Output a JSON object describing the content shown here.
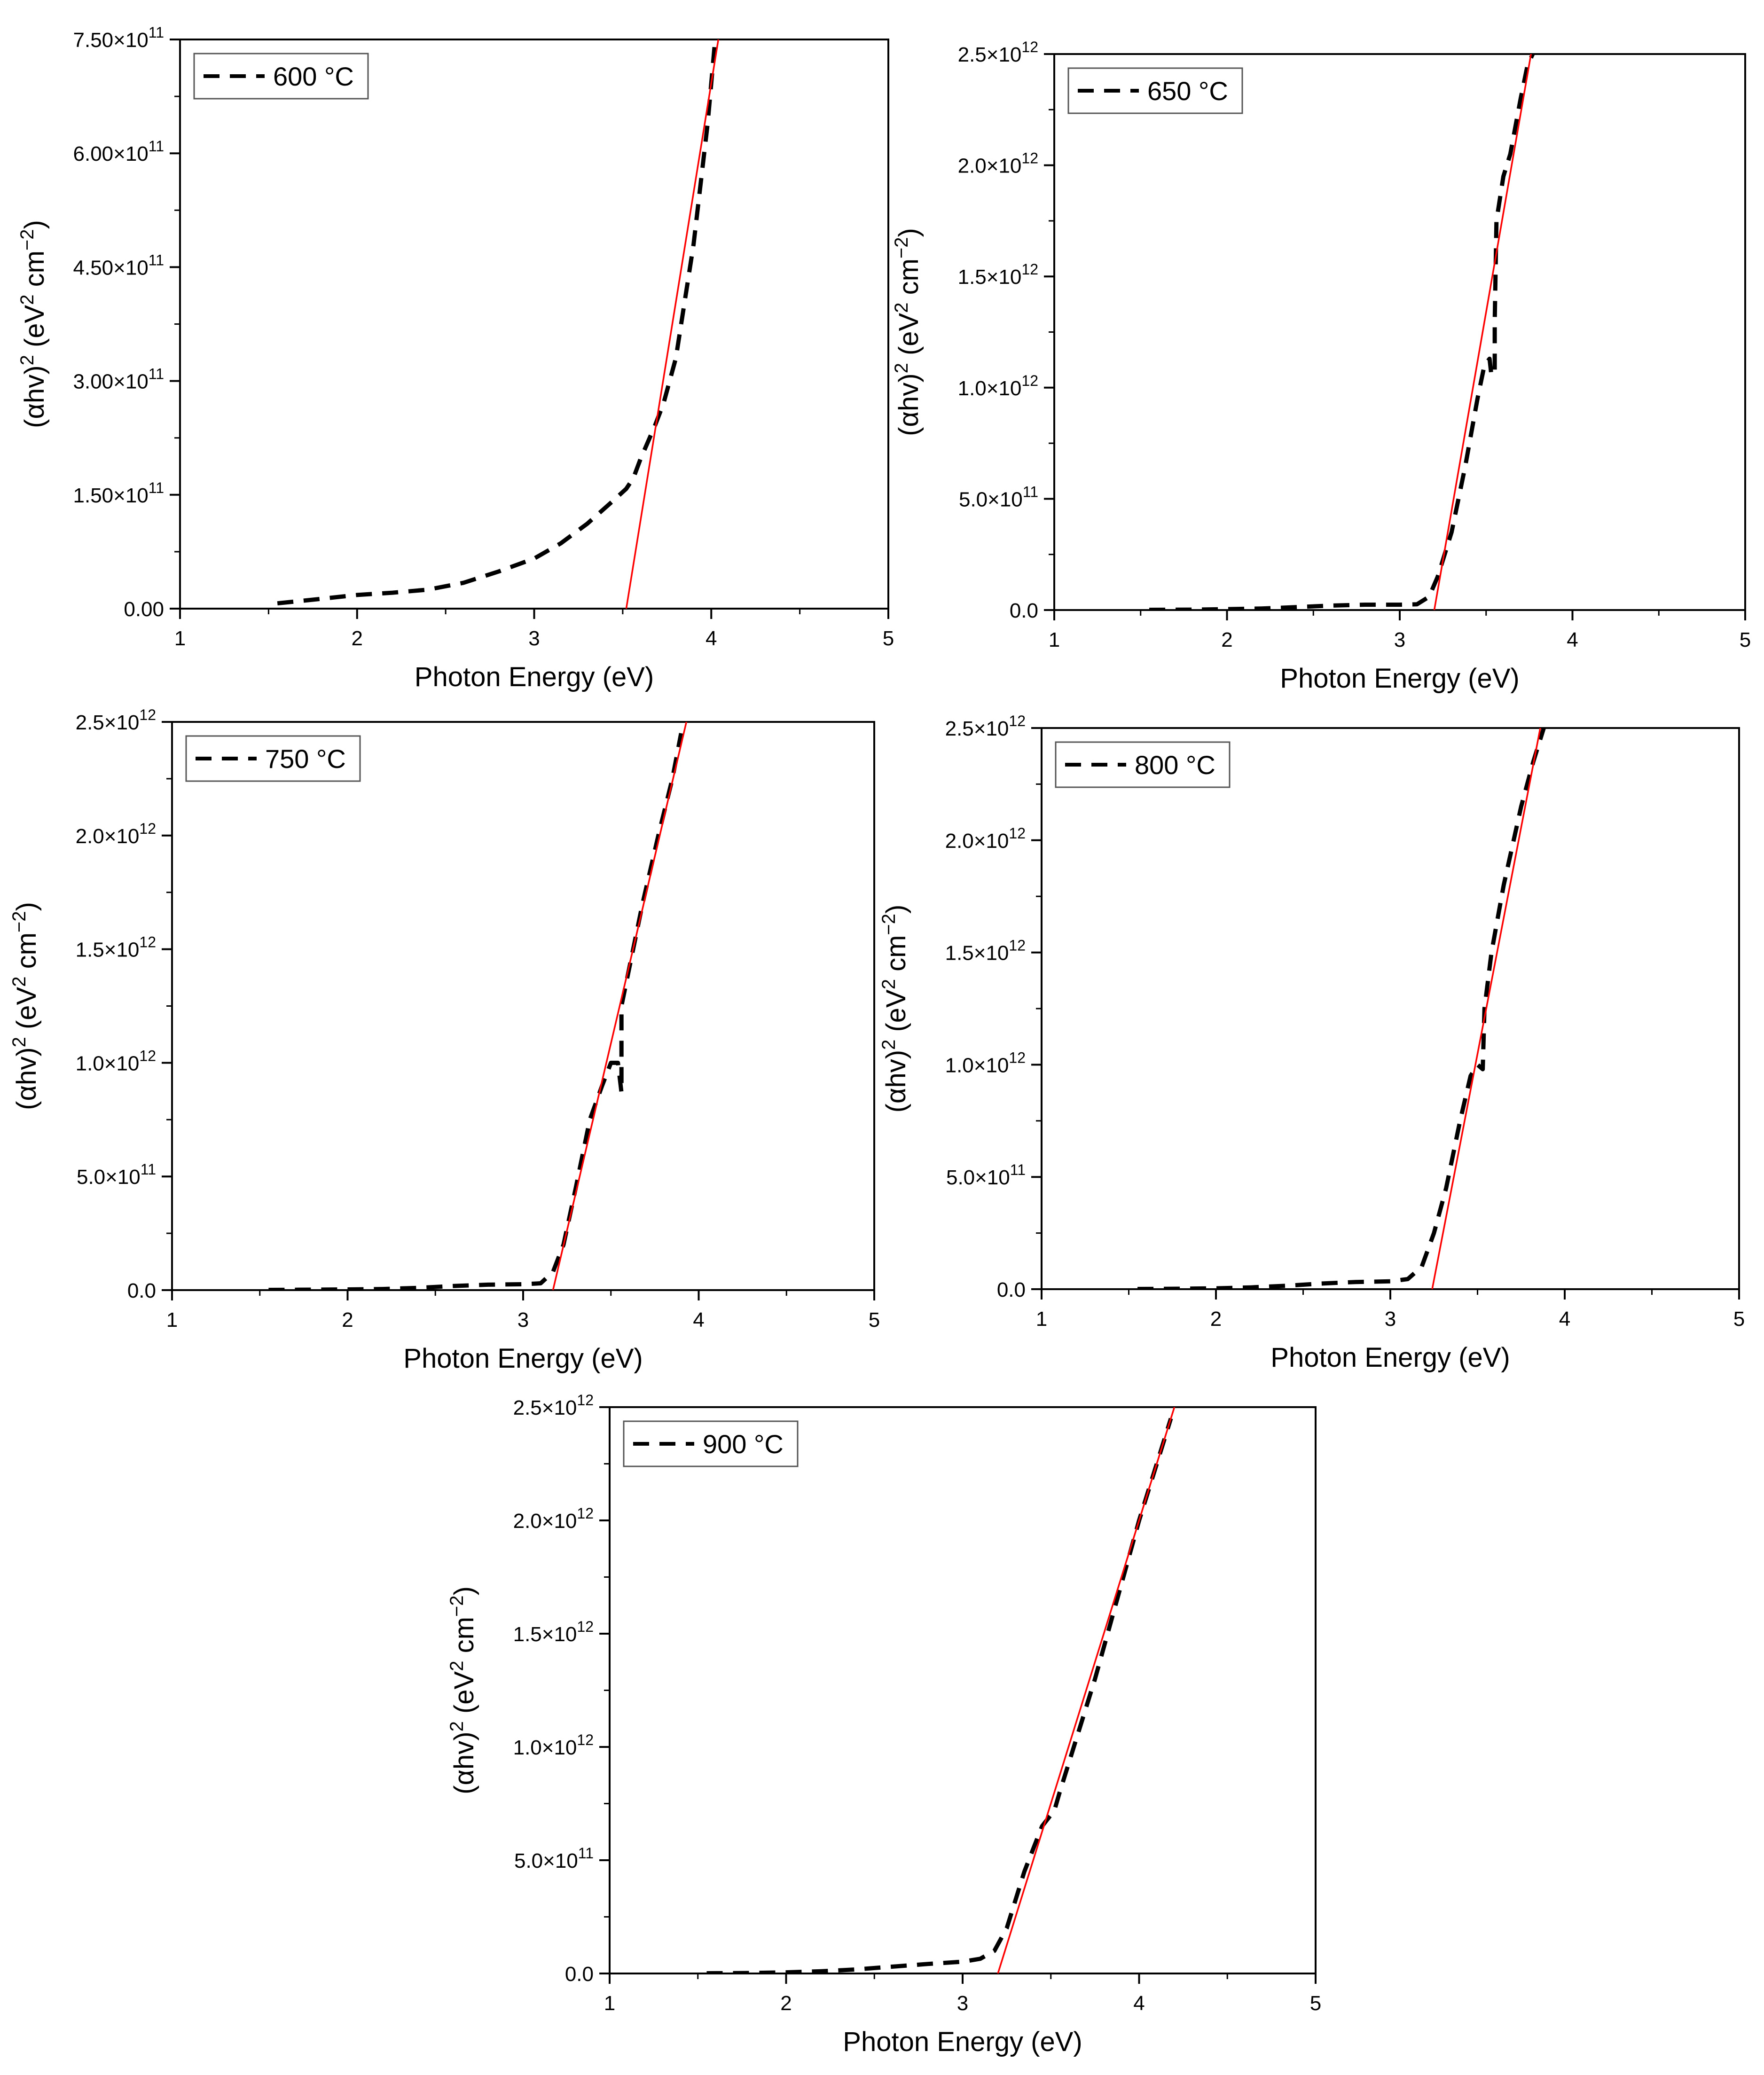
{
  "chart_data": [
    {
      "type": "line",
      "xlabel": "Photon Energy (eV)",
      "ylabel": "(αhv)² (eV² cm⁻²)",
      "xlim": [
        1,
        5
      ],
      "ylim": [
        0,
        750000000000
      ],
      "x_ticks": [
        "1",
        "2",
        "3",
        "4",
        "5"
      ],
      "y_ticks": [
        {
          "value": 0,
          "mantissa": "0.00",
          "exp": ""
        },
        {
          "value": 150000000000,
          "mantissa": "1.50×10",
          "exp": "11"
        },
        {
          "value": 300000000000,
          "mantissa": "3.00×10",
          "exp": "11"
        },
        {
          "value": 450000000000,
          "mantissa": "4.50×10",
          "exp": "11"
        },
        {
          "value": 600000000000,
          "mantissa": "6.00×10",
          "exp": "11"
        },
        {
          "value": 750000000000,
          "mantissa": "7.50×10",
          "exp": "11"
        }
      ],
      "legend": {
        "label": "600 °C",
        "position": "top-left"
      },
      "grid": false,
      "series": [
        {
          "name": "600 °C",
          "style": "dashed",
          "color": "#000000",
          "points": [
            [
              1.55,
              7000000000
            ],
            [
              1.8,
              13000000000
            ],
            [
              2.0,
              18000000000
            ],
            [
              2.2,
              21000000000
            ],
            [
              2.4,
              25000000000
            ],
            [
              2.6,
              34000000000
            ],
            [
              2.8,
              49000000000
            ],
            [
              3.0,
              66000000000
            ],
            [
              3.15,
              86000000000
            ],
            [
              3.3,
              112000000000
            ],
            [
              3.45,
              143000000000
            ],
            [
              3.52,
              158000000000
            ],
            [
              3.56,
              172000000000
            ],
            [
              3.6,
              197000000000
            ],
            [
              3.68,
              240000000000
            ],
            [
              3.73,
              270000000000
            ],
            [
              3.8,
              330000000000
            ],
            [
              3.9,
              480000000000
            ],
            [
              3.98,
              640000000000
            ],
            [
              4.02,
              745000000000
            ]
          ]
        }
      ],
      "fit_line": {
        "color": "#ff0000",
        "points": [
          [
            3.52,
            0
          ],
          [
            4.04,
            750000000000
          ]
        ]
      }
    },
    {
      "type": "line",
      "xlabel": "Photon Energy (eV)",
      "ylabel": "(αhv)² (eV² cm⁻²)",
      "xlim": [
        1,
        5
      ],
      "ylim": [
        0,
        2500000000000
      ],
      "x_ticks": [
        "1",
        "2",
        "3",
        "4",
        "5"
      ],
      "y_ticks": [
        {
          "value": 0,
          "mantissa": "0.0",
          "exp": ""
        },
        {
          "value": 500000000000,
          "mantissa": "5.0×10",
          "exp": "11"
        },
        {
          "value": 1000000000000,
          "mantissa": "1.0×10",
          "exp": "12"
        },
        {
          "value": 1500000000000,
          "mantissa": "1.5×10",
          "exp": "12"
        },
        {
          "value": 2000000000000,
          "mantissa": "2.0×10",
          "exp": "12"
        },
        {
          "value": 2500000000000,
          "mantissa": "2.5×10",
          "exp": "12"
        }
      ],
      "legend": {
        "label": "650 °C",
        "position": "top-left"
      },
      "grid": false,
      "series": [
        {
          "name": "650 °C",
          "style": "dashed",
          "color": "#000000",
          "points": [
            [
              1.55,
              1000000000
            ],
            [
              1.8,
              2000000000
            ],
            [
              2.0,
              4000000000
            ],
            [
              2.2,
              7000000000
            ],
            [
              2.4,
              13000000000
            ],
            [
              2.6,
              20000000000
            ],
            [
              2.8,
              24000000000
            ],
            [
              3.0,
              24000000000
            ],
            [
              3.1,
              26000000000
            ],
            [
              3.17,
              60000000000
            ],
            [
              3.22,
              150000000000
            ],
            [
              3.3,
              350000000000
            ],
            [
              3.38,
              650000000000
            ],
            [
              3.45,
              950000000000
            ],
            [
              3.49,
              1100000000000
            ],
            [
              3.52,
              1130000000000
            ],
            [
              3.53,
              1060000000000
            ],
            [
              3.55,
              1060000000000
            ],
            [
              3.55,
              1300000000000
            ],
            [
              3.56,
              1750000000000
            ],
            [
              3.6,
              1950000000000
            ],
            [
              3.64,
              2050000000000
            ],
            [
              3.7,
              2300000000000
            ],
            [
              3.74,
              2450000000000
            ],
            [
              3.77,
              2500000000000
            ]
          ]
        }
      ],
      "fit_line": {
        "color": "#ff0000",
        "points": [
          [
            3.2,
            0
          ],
          [
            3.76,
            2500000000000
          ]
        ]
      }
    },
    {
      "type": "line",
      "xlabel": "Photon Energy (eV)",
      "ylabel": "(αhv)² (eV² cm⁻²)",
      "xlim": [
        1,
        5
      ],
      "ylim": [
        0,
        2500000000000
      ],
      "x_ticks": [
        "1",
        "2",
        "3",
        "4",
        "5"
      ],
      "y_ticks": [
        {
          "value": 0,
          "mantissa": "0.0",
          "exp": ""
        },
        {
          "value": 500000000000,
          "mantissa": "5.0×10",
          "exp": "11"
        },
        {
          "value": 1000000000000,
          "mantissa": "1.0×10",
          "exp": "12"
        },
        {
          "value": 1500000000000,
          "mantissa": "1.5×10",
          "exp": "12"
        },
        {
          "value": 2000000000000,
          "mantissa": "2.0×10",
          "exp": "12"
        },
        {
          "value": 2500000000000,
          "mantissa": "2.5×10",
          "exp": "12"
        }
      ],
      "legend": {
        "label": "750 °C",
        "position": "top-left"
      },
      "grid": false,
      "series": [
        {
          "name": "750 °C",
          "style": "dashed",
          "color": "#000000",
          "points": [
            [
              1.55,
              1000000000
            ],
            [
              1.8,
              2000000000
            ],
            [
              2.0,
              3000000000
            ],
            [
              2.2,
              5000000000
            ],
            [
              2.4,
              10000000000
            ],
            [
              2.6,
              18000000000
            ],
            [
              2.8,
              24000000000
            ],
            [
              3.0,
              26000000000
            ],
            [
              3.1,
              30000000000
            ],
            [
              3.17,
              80000000000
            ],
            [
              3.23,
              200000000000
            ],
            [
              3.3,
              450000000000
            ],
            [
              3.38,
              750000000000
            ],
            [
              3.45,
              900000000000
            ],
            [
              3.5,
              1000000000000
            ],
            [
              3.54,
              1000000000000
            ],
            [
              3.56,
              870000000000
            ],
            [
              3.56,
              1250000000000
            ],
            [
              3.6,
              1400000000000
            ],
            [
              3.68,
              1700000000000
            ],
            [
              3.77,
              2000000000000
            ],
            [
              3.85,
              2250000000000
            ],
            [
              3.9,
              2450000000000
            ]
          ]
        }
      ],
      "fit_line": {
        "color": "#ff0000",
        "points": [
          [
            3.17,
            0
          ],
          [
            3.93,
            2500000000000
          ]
        ]
      }
    },
    {
      "type": "line",
      "xlabel": "Photon Energy (eV)",
      "ylabel": "(αhv)² (eV² cm⁻²)",
      "xlim": [
        1,
        5
      ],
      "ylim": [
        0,
        2500000000000
      ],
      "x_ticks": [
        "1",
        "2",
        "3",
        "4",
        "5"
      ],
      "y_ticks": [
        {
          "value": 0,
          "mantissa": "0.0",
          "exp": ""
        },
        {
          "value": 500000000000,
          "mantissa": "5.0×10",
          "exp": "11"
        },
        {
          "value": 1000000000000,
          "mantissa": "1.0×10",
          "exp": "12"
        },
        {
          "value": 1500000000000,
          "mantissa": "1.5×10",
          "exp": "12"
        },
        {
          "value": 2000000000000,
          "mantissa": "2.0×10",
          "exp": "12"
        },
        {
          "value": 2500000000000,
          "mantissa": "2.5×10",
          "exp": "12"
        }
      ],
      "legend": {
        "label": "800 °C",
        "position": "top-left"
      },
      "grid": false,
      "series": [
        {
          "name": "800 °C",
          "style": "dashed",
          "color": "#000000",
          "points": [
            [
              1.55,
              1000000000
            ],
            [
              1.8,
              2000000000
            ],
            [
              2.0,
              4000000000
            ],
            [
              2.2,
              8000000000
            ],
            [
              2.4,
              15000000000
            ],
            [
              2.6,
              25000000000
            ],
            [
              2.8,
              32000000000
            ],
            [
              3.0,
              35000000000
            ],
            [
              3.1,
              45000000000
            ],
            [
              3.18,
              100000000000
            ],
            [
              3.25,
              250000000000
            ],
            [
              3.32,
              450000000000
            ],
            [
              3.4,
              750000000000
            ],
            [
              3.46,
              950000000000
            ],
            [
              3.5,
              1000000000000
            ],
            [
              3.53,
              980000000000
            ],
            [
              3.54,
              1250000000000
            ],
            [
              3.58,
              1500000000000
            ],
            [
              3.65,
              1800000000000
            ],
            [
              3.75,
              2150000000000
            ],
            [
              3.82,
              2350000000000
            ],
            [
              3.88,
              2500000000000
            ]
          ]
        }
      ],
      "fit_line": {
        "color": "#ff0000",
        "points": [
          [
            3.24,
            0
          ],
          [
            3.86,
            2500000000000
          ]
        ]
      }
    },
    {
      "type": "line",
      "xlabel": "Photon Energy (eV)",
      "ylabel": "(αhv)² (eV² cm⁻²)",
      "xlim": [
        1,
        5
      ],
      "ylim": [
        0,
        2500000000000
      ],
      "x_ticks": [
        "1",
        "2",
        "3",
        "4",
        "5"
      ],
      "y_ticks": [
        {
          "value": 0,
          "mantissa": "0.0",
          "exp": ""
        },
        {
          "value": 500000000000,
          "mantissa": "5.0×10",
          "exp": "11"
        },
        {
          "value": 1000000000000,
          "mantissa": "1.0×10",
          "exp": "12"
        },
        {
          "value": 1500000000000,
          "mantissa": "1.5×10",
          "exp": "12"
        },
        {
          "value": 2000000000000,
          "mantissa": "2.0×10",
          "exp": "12"
        },
        {
          "value": 2500000000000,
          "mantissa": "2.5×10",
          "exp": "12"
        }
      ],
      "legend": {
        "label": "900 °C",
        "position": "top-left"
      },
      "grid": false,
      "series": [
        {
          "name": "900 °C",
          "style": "dashed",
          "color": "#000000",
          "points": [
            [
              1.55,
              1000000000
            ],
            [
              1.8,
              2000000000
            ],
            [
              2.0,
              5000000000
            ],
            [
              2.2,
              10000000000
            ],
            [
              2.4,
              18000000000
            ],
            [
              2.6,
              30000000000
            ],
            [
              2.8,
              42000000000
            ],
            [
              3.0,
              52000000000
            ],
            [
              3.1,
              65000000000
            ],
            [
              3.18,
              100000000000
            ],
            [
              3.25,
              200000000000
            ],
            [
              3.35,
              450000000000
            ],
            [
              3.45,
              650000000000
            ],
            [
              3.52,
              720000000000
            ],
            [
              3.55,
              800000000000
            ],
            [
              3.65,
              1050000000000
            ],
            [
              3.75,
              1300000000000
            ],
            [
              3.85,
              1580000000000
            ],
            [
              4.0,
              2000000000000
            ],
            [
              4.1,
              2250000000000
            ],
            [
              4.18,
              2450000000000
            ]
          ]
        }
      ],
      "fit_line": {
        "color": "#ff0000",
        "points": [
          [
            3.2,
            0
          ],
          [
            4.2,
            2500000000000
          ]
        ]
      }
    }
  ]
}
